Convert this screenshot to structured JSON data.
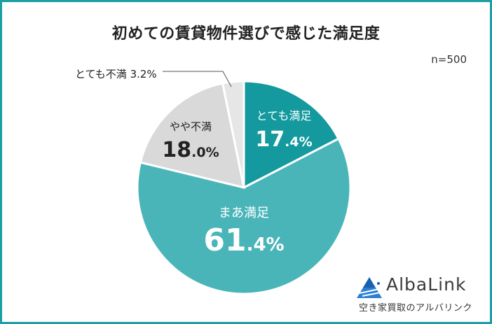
{
  "title": "初めての賃貸物件選びで感じた満足度",
  "sample_size": "n=500",
  "slices": [
    {
      "name": "とても満足",
      "pct_int": "17",
      "pct_dec": ".4%",
      "color": "#13999e"
    },
    {
      "name": "まあ満足",
      "pct_int": "61",
      "pct_dec": ".4%",
      "color": "#4ab5b9"
    },
    {
      "name": "やや不満",
      "pct_int": "18",
      "pct_dec": ".0%",
      "color": "#d9d9d9"
    },
    {
      "name": "とても不満",
      "pct_int": "3",
      "pct_dec": ".2%",
      "color": "#e6e6e6"
    }
  ],
  "callout": {
    "text": "とても不満 3.2%"
  },
  "logo": {
    "brand": "AlbaLink",
    "tagline": "空き家買取のアルバリンク"
  },
  "chart_data": {
    "type": "pie",
    "title": "初めての賃貸物件選びで感じた満足度",
    "annotation": "n=500",
    "categories": [
      "とても満足",
      "まあ満足",
      "やや不満",
      "とても不満"
    ],
    "values": [
      17.4,
      61.4,
      18.0,
      3.2
    ],
    "unit": "%",
    "start_angle": "12 o'clock",
    "direction": "clockwise",
    "colors": [
      "#13999e",
      "#4ab5b9",
      "#d9d9d9",
      "#e6e6e6"
    ],
    "legend": "none (labels inside slices; とても不満 via callout line)"
  }
}
